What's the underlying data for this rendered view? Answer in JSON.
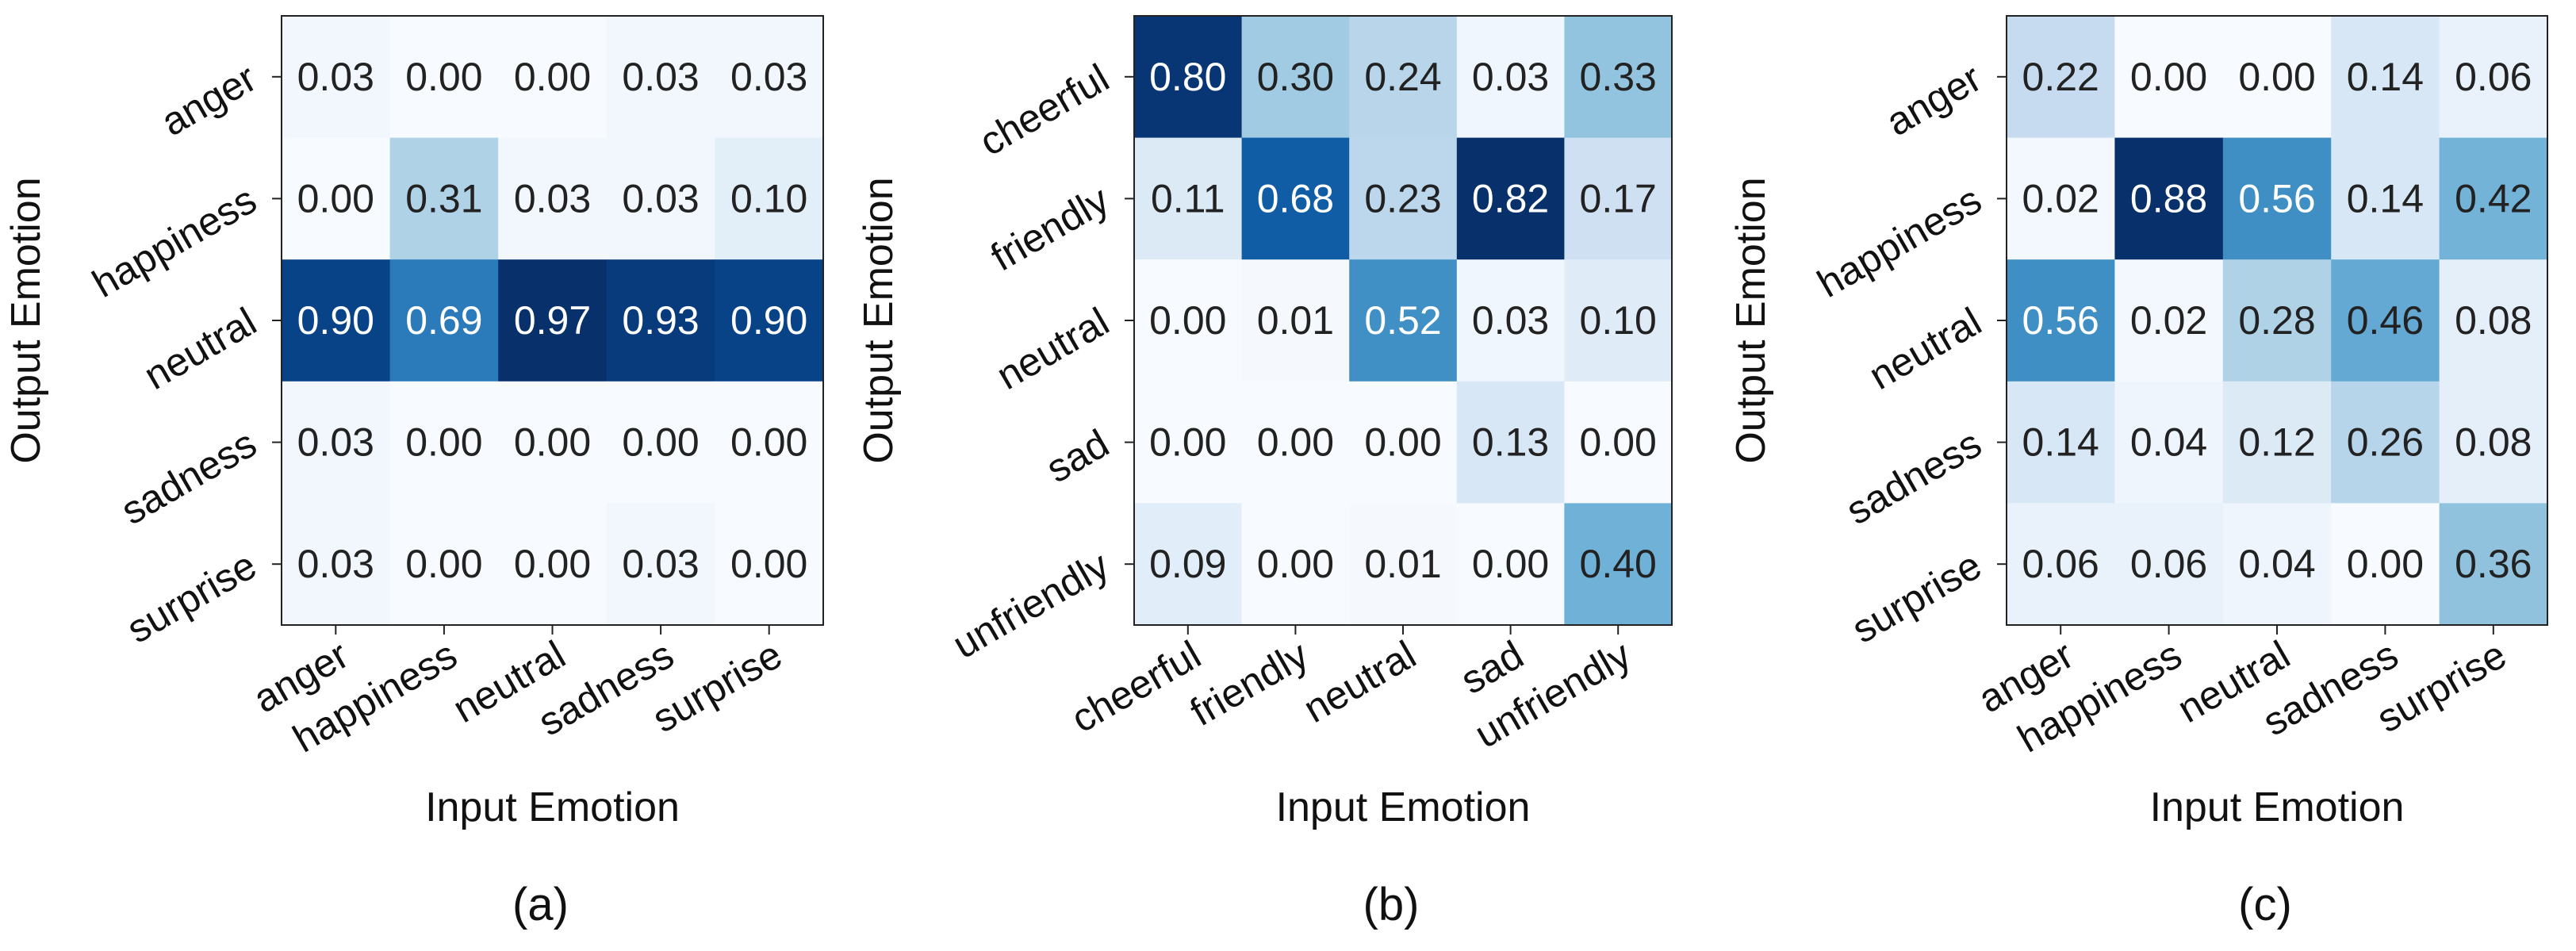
{
  "chart_data": [
    {
      "type": "heatmap",
      "caption": "(a)",
      "xlabel": "Input Emotion",
      "ylabel": "Output Emotion",
      "x_categories": [
        "anger",
        "happiness",
        "neutral",
        "sadness",
        "surprise"
      ],
      "y_categories": [
        "anger",
        "happiness",
        "neutral",
        "sadness",
        "surprise"
      ],
      "values": [
        [
          0.03,
          0.0,
          0.0,
          0.03,
          0.03
        ],
        [
          0.0,
          0.31,
          0.03,
          0.03,
          0.1
        ],
        [
          0.9,
          0.69,
          0.97,
          0.93,
          0.9
        ],
        [
          0.03,
          0.0,
          0.0,
          0.0,
          0.0
        ],
        [
          0.03,
          0.0,
          0.0,
          0.03,
          0.0
        ]
      ],
      "value_range": [
        0,
        0.97
      ],
      "colormap": "Blues"
    },
    {
      "type": "heatmap",
      "caption": "(b)",
      "xlabel": "Input Emotion",
      "ylabel": "Output Emotion",
      "x_categories": [
        "cheerful",
        "friendly",
        "neutral",
        "sad",
        "unfriendly"
      ],
      "y_categories": [
        "cheerful",
        "friendly",
        "neutral",
        "sad",
        "unfriendly"
      ],
      "values": [
        [
          0.8,
          0.3,
          0.24,
          0.03,
          0.33
        ],
        [
          0.11,
          0.68,
          0.23,
          0.82,
          0.17
        ],
        [
          0.0,
          0.01,
          0.52,
          0.03,
          0.1
        ],
        [
          0.0,
          0.0,
          0.0,
          0.13,
          0.0
        ],
        [
          0.09,
          0.0,
          0.01,
          0.0,
          0.4
        ]
      ],
      "value_range": [
        0,
        0.82
      ],
      "colormap": "Blues"
    },
    {
      "type": "heatmap",
      "caption": "(c)",
      "xlabel": "Input Emotion",
      "ylabel": "Output Emotion",
      "x_categories": [
        "anger",
        "happiness",
        "neutral",
        "sadness",
        "surprise"
      ],
      "y_categories": [
        "anger",
        "happiness",
        "neutral",
        "sadness",
        "surprise"
      ],
      "values": [
        [
          0.22,
          0.0,
          0.0,
          0.14,
          0.06
        ],
        [
          0.02,
          0.88,
          0.56,
          0.14,
          0.42
        ],
        [
          0.56,
          0.02,
          0.28,
          0.46,
          0.08
        ],
        [
          0.14,
          0.04,
          0.12,
          0.26,
          0.08
        ],
        [
          0.06,
          0.06,
          0.04,
          0.0,
          0.36
        ]
      ],
      "value_range": [
        0,
        0.88
      ],
      "colormap": "Blues"
    }
  ]
}
